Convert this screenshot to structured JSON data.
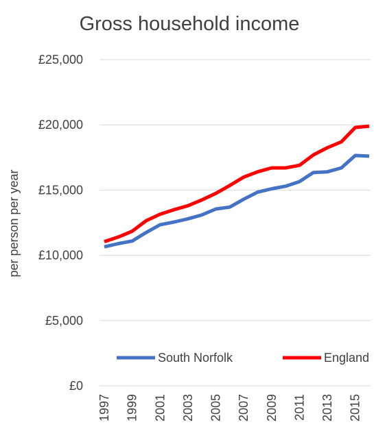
{
  "chart_data": {
    "type": "line",
    "title": "Gross household income",
    "ylabel": "per person per year",
    "xlabel": "",
    "ylim": [
      0,
      25000
    ],
    "yticks": [
      0,
      5000,
      10000,
      15000,
      20000,
      25000
    ],
    "ytick_labels": [
      "£0",
      "£5,000",
      "£10,000",
      "£15,000",
      "£20,000",
      "£25,000"
    ],
    "x": [
      1997,
      1998,
      1999,
      2000,
      2001,
      2002,
      2003,
      2004,
      2005,
      2006,
      2007,
      2008,
      2009,
      2010,
      2011,
      2012,
      2013,
      2014,
      2015,
      2016
    ],
    "xtick_labels": [
      "1997",
      "1999",
      "2001",
      "2003",
      "2005",
      "2007",
      "2009",
      "2011",
      "2013",
      "2015"
    ],
    "grid": true,
    "legend_position": "bottom",
    "series": [
      {
        "name": "South Norfolk",
        "color": "#4472c4",
        "values": [
          10650,
          10900,
          11100,
          11750,
          12350,
          12550,
          12800,
          13100,
          13550,
          13700,
          14300,
          14850,
          15100,
          15300,
          15650,
          16350,
          16400,
          16700,
          17650,
          17600
        ]
      },
      {
        "name": "England",
        "color": "#ff0000",
        "values": [
          11050,
          11400,
          11850,
          12650,
          13150,
          13500,
          13800,
          14250,
          14750,
          15350,
          16000,
          16400,
          16700,
          16700,
          16900,
          17700,
          18250,
          18700,
          19800,
          19900
        ]
      }
    ]
  }
}
